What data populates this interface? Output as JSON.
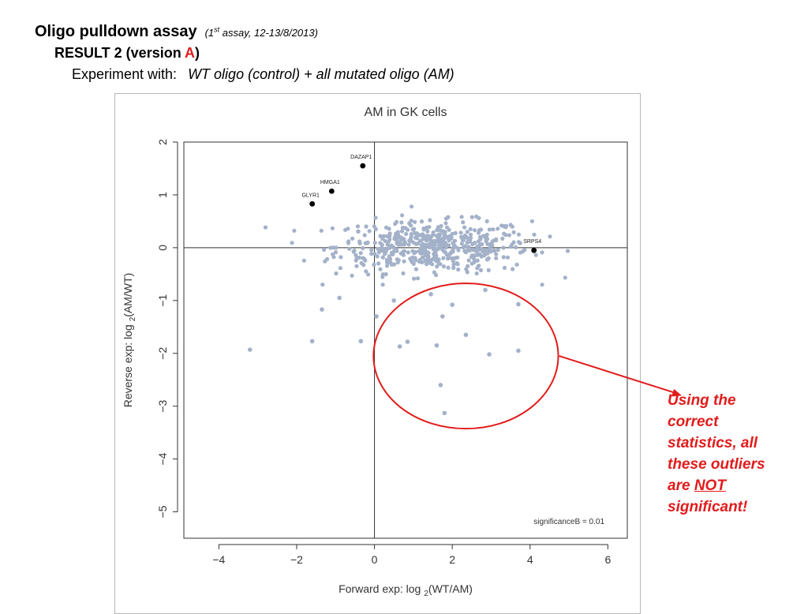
{
  "header": {
    "title": "Oligo pulldown assay",
    "assay_prefix": "(1",
    "assay_sup": "st",
    "assay_suffix": " assay, 12-13/8/2013)",
    "result_prefix": "RESULT  2  (version ",
    "result_version": "A",
    "result_suffix": ")",
    "experiment_label": "Experiment with:",
    "experiment_text": "WT oligo (control)  +  all mutated oligo (AM)"
  },
  "annotation": {
    "line1": "Using the",
    "line2": "correct",
    "line3": "statistics, all",
    "line4": "these outliers",
    "line5_prefix": "are ",
    "line5_underlined": "NOT",
    "line6": "significant!"
  },
  "colors": {
    "accent_red": "#e21b1b",
    "point_blue": "#a3b1c9",
    "highlight_black": "#000000"
  },
  "chart_data": {
    "type": "scatter",
    "title": "AM in GK cells",
    "xlabel_main": "Forward exp: log",
    "xlabel_sub": "2",
    "xlabel_rest": "(WT/AM)",
    "ylabel_main": "Reverse exp: log",
    "ylabel_sub": "2",
    "ylabel_rest": "(AM/WT)",
    "xlim": [
      -4.9,
      6.5
    ],
    "ylim": [
      -5.5,
      2.0
    ],
    "x_ticks": [
      -4,
      -2,
      0,
      2,
      4,
      6
    ],
    "x_tick_labels": [
      "−4",
      "−2",
      "0",
      "2",
      "4",
      "6"
    ],
    "y_ticks": [
      2,
      1,
      0,
      -1,
      -2,
      -3,
      -4,
      -5
    ],
    "y_tick_labels": [
      "2",
      "1",
      "0",
      "−1",
      "−2",
      "−3",
      "−4",
      "−5"
    ],
    "grid": false,
    "significance_label": "significanceB = 0.01",
    "highlighted": [
      {
        "label": "DAZAP1",
        "x": -0.3,
        "y": 1.55
      },
      {
        "label": "HMGA1",
        "x": -1.1,
        "y": 1.07
      },
      {
        "label": "GLYR1",
        "x": -1.6,
        "y": 0.83
      },
      {
        "label": "SRPS4",
        "x": 4.1,
        "y": -0.05
      }
    ],
    "outliers": [
      {
        "x": -3.2,
        "y": -1.93
      },
      {
        "x": -1.6,
        "y": -1.77
      },
      {
        "x": -1.35,
        "y": -1.17
      },
      {
        "x": -0.9,
        "y": -0.95
      },
      {
        "x": -0.35,
        "y": -1.77
      },
      {
        "x": 0.05,
        "y": -1.3
      },
      {
        "x": 0.65,
        "y": -1.87
      },
      {
        "x": 0.85,
        "y": -1.78
      },
      {
        "x": 1.6,
        "y": -1.85
      },
      {
        "x": 1.7,
        "y": -2.6
      },
      {
        "x": 1.8,
        "y": -3.13
      },
      {
        "x": 1.75,
        "y": -1.3
      },
      {
        "x": 2.35,
        "y": -1.65
      },
      {
        "x": 2.95,
        "y": -2.02
      },
      {
        "x": 3.7,
        "y": -1.95
      },
      {
        "x": 3.7,
        "y": -1.07
      },
      {
        "x": 0.5,
        "y": -1.0
      },
      {
        "x": 1.45,
        "y": -0.88
      },
      {
        "x": 2.0,
        "y": -1.08
      },
      {
        "x": 2.85,
        "y": -0.8
      }
    ],
    "cluster_summary": {
      "count": 520,
      "x_center": 1.5,
      "x_spread": 1.25,
      "y_center": 0.02,
      "y_spread": 0.22
    },
    "arrow_target_x": 7.9
  }
}
